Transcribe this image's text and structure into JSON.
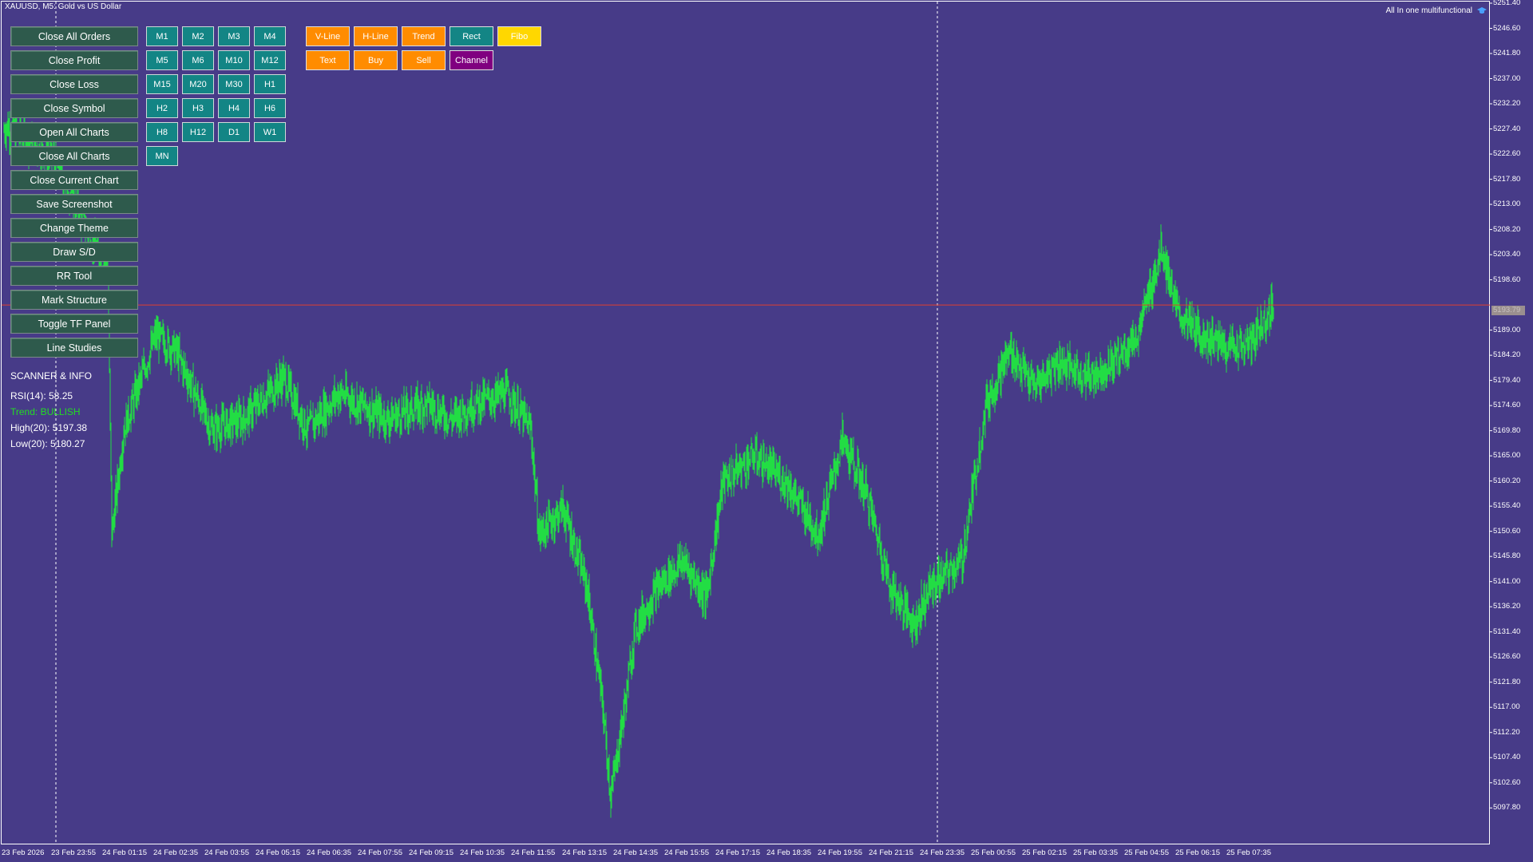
{
  "window": {
    "title": "XAUUSD, M5:  Gold vs US Dollar",
    "indicator_name": "All In one multifunctional"
  },
  "left_buttons": [
    "Close All Orders",
    "Close Profit",
    "Close Loss",
    "Close Symbol",
    "Open All Charts",
    "Close All Charts",
    "Close Current Chart",
    "Save Screenshot",
    "Change Theme",
    "Draw S/D",
    "RR Tool",
    "Mark Structure",
    "Toggle TF Panel",
    "Line Studies"
  ],
  "timeframes": [
    [
      "M1",
      "M2",
      "M3",
      "M4"
    ],
    [
      "M5",
      "M6",
      "M10",
      "M12"
    ],
    [
      "M15",
      "M20",
      "M30",
      "H1"
    ],
    [
      "H2",
      "H3",
      "H4",
      "H6"
    ],
    [
      "H8",
      "H12",
      "D1",
      "W1"
    ],
    [
      "MN"
    ]
  ],
  "tools": [
    [
      {
        "label": "V-Line",
        "color": "#ff8c00"
      },
      {
        "label": "H-Line",
        "color": "#ff8c00"
      },
      {
        "label": "Trend",
        "color": "#ff8c00"
      },
      {
        "label": "Rect",
        "color": "#138585"
      },
      {
        "label": "Fibo",
        "color": "#ffd700"
      }
    ],
    [
      {
        "label": "Text",
        "color": "#ff8c00"
      },
      {
        "label": "Buy",
        "color": "#ff8c00"
      },
      {
        "label": "Sell",
        "color": "#ff8c00"
      },
      {
        "label": "Channel",
        "color": "#800080"
      }
    ]
  ],
  "scanner": {
    "heading": "SCANNER & INFO",
    "rsi": "RSI(14): 58.25",
    "trend": "Trend: BULLISH",
    "high": "High(20): 5197.38",
    "low": "Low(20): 5180.27"
  },
  "colors": {
    "background": "#473b88",
    "candle": "#22dd44",
    "price_line": "#e0402e"
  },
  "chart_data": {
    "type": "candlestick",
    "symbol": "XAUUSD",
    "timeframe": "M5",
    "current_price": "5193.79",
    "y_ticks": [
      "5251.40",
      "5246.60",
      "5241.80",
      "5237.00",
      "5232.20",
      "5227.40",
      "5222.60",
      "5217.80",
      "5213.00",
      "5208.20",
      "5203.40",
      "5198.60",
      "5189.00",
      "5184.20",
      "5179.40",
      "5174.60",
      "5169.80",
      "5165.00",
      "5160.20",
      "5155.40",
      "5150.60",
      "5145.80",
      "5141.00",
      "5136.20",
      "5131.40",
      "5126.60",
      "5121.80",
      "5117.00",
      "5112.20",
      "5107.40",
      "5102.60",
      "5097.80"
    ],
    "x_ticks": [
      "23 Feb 2026",
      "23 Feb 23:55",
      "24 Feb 01:15",
      "24 Feb 02:35",
      "24 Feb 03:55",
      "24 Feb 05:15",
      "24 Feb 06:35",
      "24 Feb 07:55",
      "24 Feb 09:15",
      "24 Feb 10:35",
      "24 Feb 11:55",
      "24 Feb 13:15",
      "24 Feb 14:35",
      "24 Feb 15:55",
      "24 Feb 17:15",
      "24 Feb 18:35",
      "24 Feb 19:55",
      "24 Feb 21:15",
      "24 Feb 23:35",
      "25 Feb 00:55",
      "25 Feb 02:15",
      "25 Feb 03:35",
      "25 Feb 04:55",
      "25 Feb 06:15",
      "25 Feb 07:35"
    ],
    "ylim": [
      5095.4,
      5251.4
    ],
    "price_path": [
      [
        0,
        5227
      ],
      [
        3,
        5228
      ],
      [
        60,
        5222
      ],
      [
        130,
        5200
      ],
      [
        135,
        5150
      ],
      [
        150,
        5170
      ],
      [
        190,
        5188
      ],
      [
        215,
        5185
      ],
      [
        260,
        5170
      ],
      [
        300,
        5172
      ],
      [
        350,
        5180
      ],
      [
        380,
        5170
      ],
      [
        420,
        5177
      ],
      [
        480,
        5172
      ],
      [
        530,
        5175
      ],
      [
        560,
        5172
      ],
      [
        590,
        5175
      ],
      [
        630,
        5177
      ],
      [
        660,
        5170
      ],
      [
        670,
        5150
      ],
      [
        700,
        5155
      ],
      [
        730,
        5140
      ],
      [
        750,
        5117
      ],
      [
        760,
        5100
      ],
      [
        780,
        5120
      ],
      [
        790,
        5132
      ],
      [
        820,
        5140
      ],
      [
        850,
        5145
      ],
      [
        880,
        5138
      ],
      [
        900,
        5160
      ],
      [
        940,
        5165
      ],
      [
        980,
        5160
      ],
      [
        1020,
        5150
      ],
      [
        1050,
        5168
      ],
      [
        1080,
        5158
      ],
      [
        1110,
        5140
      ],
      [
        1140,
        5133
      ],
      [
        1160,
        5140
      ],
      [
        1200,
        5145
      ],
      [
        1230,
        5175
      ],
      [
        1260,
        5185
      ],
      [
        1290,
        5178
      ],
      [
        1320,
        5183
      ],
      [
        1360,
        5180
      ],
      [
        1390,
        5183
      ],
      [
        1420,
        5188
      ],
      [
        1450,
        5205
      ],
      [
        1470,
        5192
      ],
      [
        1500,
        5188
      ],
      [
        1530,
        5186
      ],
      [
        1560,
        5186
      ],
      [
        1590,
        5194
      ]
    ]
  }
}
